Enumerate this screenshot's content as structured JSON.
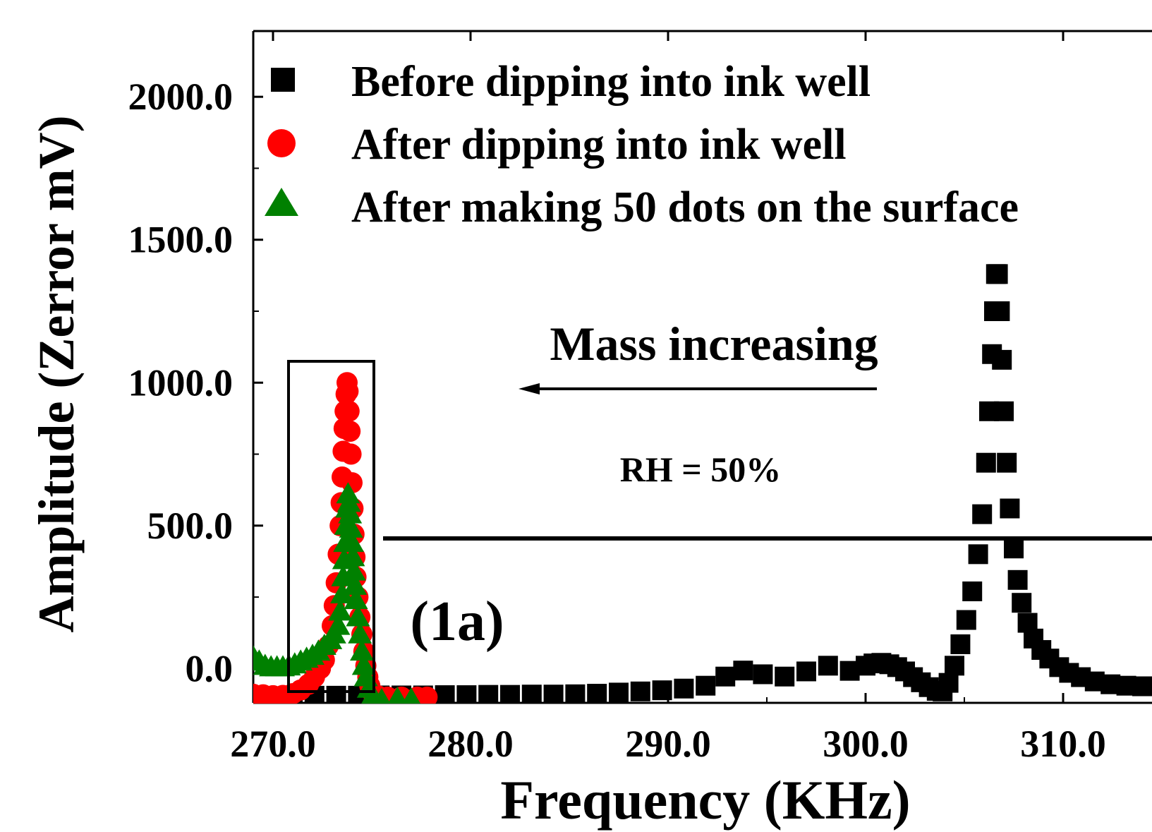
{
  "chart_data": {
    "type": "scatter",
    "title": "",
    "xlabel": "Frequency (KHz)",
    "ylabel": "Amplitude (Zerror mV)",
    "xlim": [
      269.0,
      314.5
    ],
    "ylim": [
      -120,
      2230
    ],
    "x_ticks": [
      {
        "value": 270,
        "label": "270.0"
      },
      {
        "value": 280,
        "label": "280.0"
      },
      {
        "value": 290,
        "label": "290.0"
      },
      {
        "value": 300,
        "label": "300.0"
      },
      {
        "value": 310,
        "label": "310.0"
      }
    ],
    "y_ticks": [
      {
        "value": 0,
        "label": "0.0"
      },
      {
        "value": 500,
        "label": "500.0"
      },
      {
        "value": 1000,
        "label": "1000.0"
      },
      {
        "value": 1500,
        "label": "1500.0"
      },
      {
        "value": 2000,
        "label": "2000.0"
      }
    ],
    "legend_position": "top",
    "annotations": {
      "mass": "Mass increasing",
      "rh": "RH = 50%",
      "panel": "(1a)"
    },
    "series": [
      {
        "name": "Before dipping into ink well",
        "marker": "square",
        "color": "#000000",
        "points": [
          [
            271.0,
            -95
          ],
          [
            272.1,
            -95
          ],
          [
            273.2,
            -95
          ],
          [
            274.3,
            -95
          ],
          [
            275.4,
            -94
          ],
          [
            276.5,
            -94
          ],
          [
            277.6,
            -94
          ],
          [
            278.7,
            -93
          ],
          [
            279.8,
            -93
          ],
          [
            280.9,
            -92
          ],
          [
            282.0,
            -92
          ],
          [
            283.1,
            -91
          ],
          [
            284.2,
            -91
          ],
          [
            285.3,
            -90
          ],
          [
            286.4,
            -88
          ],
          [
            287.5,
            -84
          ],
          [
            288.6,
            -80
          ],
          [
            289.7,
            -76
          ],
          [
            290.8,
            -70
          ],
          [
            291.9,
            -60
          ],
          [
            292.9,
            -28
          ],
          [
            293.8,
            -7
          ],
          [
            294.8,
            -20
          ],
          [
            295.9,
            -28
          ],
          [
            297.0,
            -10
          ],
          [
            298.1,
            10
          ],
          [
            299.2,
            -8
          ],
          [
            300.0,
            10
          ],
          [
            300.4,
            18
          ],
          [
            300.8,
            20
          ],
          [
            301.2,
            15
          ],
          [
            301.6,
            5
          ],
          [
            302.0,
            -10
          ],
          [
            302.4,
            -30
          ],
          [
            302.8,
            -48
          ],
          [
            303.2,
            -65
          ],
          [
            303.6,
            -78
          ],
          [
            303.9,
            -80
          ],
          [
            304.2,
            -50
          ],
          [
            304.5,
            10
          ],
          [
            304.8,
            85
          ],
          [
            305.1,
            170
          ],
          [
            305.4,
            270
          ],
          [
            305.7,
            400
          ],
          [
            305.9,
            540
          ],
          [
            306.1,
            720
          ],
          [
            306.25,
            900
          ],
          [
            306.4,
            1100
          ],
          [
            306.5,
            1250
          ],
          [
            306.6,
            1380
          ],
          [
            306.7,
            1380
          ],
          [
            306.8,
            1250
          ],
          [
            306.9,
            1080
          ],
          [
            307.0,
            900
          ],
          [
            307.15,
            720
          ],
          [
            307.3,
            560
          ],
          [
            307.5,
            420
          ],
          [
            307.7,
            310
          ],
          [
            307.9,
            230
          ],
          [
            308.2,
            160
          ],
          [
            308.5,
            105
          ],
          [
            308.9,
            65
          ],
          [
            309.3,
            35
          ],
          [
            309.8,
            5
          ],
          [
            310.3,
            -15
          ],
          [
            310.9,
            -30
          ],
          [
            311.6,
            -45
          ],
          [
            312.4,
            -55
          ],
          [
            313.2,
            -60
          ],
          [
            314.0,
            -62
          ]
        ]
      },
      {
        "name": "After dipping into ink well",
        "marker": "circle",
        "color": "#ff0000",
        "points": [
          [
            269.0,
            -90
          ],
          [
            269.5,
            -92
          ],
          [
            270.0,
            -95
          ],
          [
            270.5,
            -94
          ],
          [
            271.0,
            -88
          ],
          [
            271.4,
            -75
          ],
          [
            271.8,
            -55
          ],
          [
            272.1,
            -30
          ],
          [
            272.4,
            0
          ],
          [
            272.6,
            30
          ],
          [
            272.8,
            80
          ],
          [
            273.0,
            150
          ],
          [
            273.1,
            220
          ],
          [
            273.2,
            300
          ],
          [
            273.3,
            400
          ],
          [
            273.4,
            500
          ],
          [
            273.45,
            580
          ],
          [
            273.5,
            670
          ],
          [
            273.55,
            760
          ],
          [
            273.6,
            840
          ],
          [
            273.65,
            900
          ],
          [
            273.7,
            960
          ],
          [
            273.75,
            1000
          ],
          [
            273.8,
            970
          ],
          [
            273.85,
            900
          ],
          [
            273.9,
            830
          ],
          [
            273.95,
            750
          ],
          [
            274.0,
            650
          ],
          [
            274.05,
            560
          ],
          [
            274.1,
            470
          ],
          [
            274.15,
            390
          ],
          [
            274.2,
            320
          ],
          [
            274.3,
            250
          ],
          [
            274.4,
            180
          ],
          [
            274.5,
            120
          ],
          [
            274.6,
            60
          ],
          [
            274.7,
            10
          ],
          [
            274.8,
            -30
          ],
          [
            274.9,
            -60
          ],
          [
            275.0,
            -80
          ],
          [
            275.3,
            -95
          ],
          [
            275.8,
            -100
          ],
          [
            276.5,
            -100
          ],
          [
            277.3,
            -100
          ],
          [
            277.8,
            -100
          ]
        ]
      },
      {
        "name": "After making 50 dots on the surface",
        "marker": "triangle",
        "color": "#008000",
        "points": [
          [
            269.0,
            40
          ],
          [
            269.3,
            25
          ],
          [
            269.6,
            10
          ],
          [
            269.9,
            5
          ],
          [
            270.2,
            5
          ],
          [
            270.5,
            5
          ],
          [
            270.8,
            8
          ],
          [
            271.1,
            15
          ],
          [
            271.4,
            25
          ],
          [
            271.7,
            35
          ],
          [
            272.0,
            45
          ],
          [
            272.3,
            60
          ],
          [
            272.6,
            80
          ],
          [
            272.9,
            100
          ],
          [
            273.1,
            120
          ],
          [
            273.3,
            150
          ],
          [
            273.4,
            200
          ],
          [
            273.5,
            260
          ],
          [
            273.55,
            320
          ],
          [
            273.6,
            380
          ],
          [
            273.65,
            440
          ],
          [
            273.7,
            500
          ],
          [
            273.75,
            560
          ],
          [
            273.8,
            610
          ],
          [
            273.85,
            580
          ],
          [
            273.9,
            540
          ],
          [
            273.95,
            490
          ],
          [
            274.0,
            440
          ],
          [
            274.05,
            390
          ],
          [
            274.1,
            340
          ],
          [
            274.15,
            290
          ],
          [
            274.2,
            240
          ],
          [
            274.3,
            180
          ],
          [
            274.4,
            120
          ],
          [
            274.5,
            60
          ],
          [
            274.6,
            10
          ],
          [
            274.7,
            -30
          ],
          [
            274.85,
            -70
          ],
          [
            275.0,
            -100
          ],
          [
            275.5,
            -110
          ],
          [
            276.3,
            -105
          ],
          [
            277.0,
            -108
          ]
        ]
      }
    ]
  }
}
